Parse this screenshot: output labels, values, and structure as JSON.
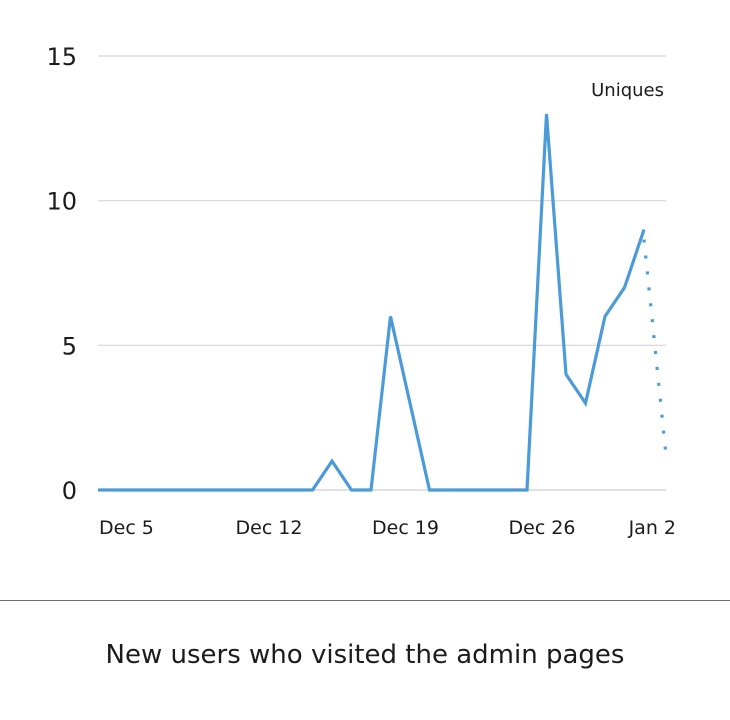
{
  "chart_data": {
    "type": "line",
    "caption": "New users who visited the admin pages",
    "legend": "Uniques",
    "legend_position": "top-right",
    "grid": true,
    "ylim": [
      0,
      15
    ],
    "yticks": [
      "15",
      "10",
      "5",
      "0"
    ],
    "xlim": [
      "2022-12-05",
      "2023-01-02"
    ],
    "xticks": [
      {
        "label": "Dec 5",
        "date": "2022-12-05"
      },
      {
        "label": "Dec 12",
        "date": "2022-12-12"
      },
      {
        "label": "Dec 19",
        "date": "2022-12-19"
      },
      {
        "label": "Dec 26",
        "date": "2022-12-26"
      },
      {
        "label": "Jan 2",
        "date": "2023-01-02"
      }
    ],
    "series": [
      {
        "name": "Uniques",
        "color": "#4a9bd8",
        "points": [
          {
            "x": "2022-12-05",
            "y": 0
          },
          {
            "x": "2022-12-06",
            "y": 0
          },
          {
            "x": "2022-12-07",
            "y": 0
          },
          {
            "x": "2022-12-08",
            "y": 0
          },
          {
            "x": "2022-12-09",
            "y": 0
          },
          {
            "x": "2022-12-10",
            "y": 0
          },
          {
            "x": "2022-12-11",
            "y": 0
          },
          {
            "x": "2022-12-12",
            "y": 0
          },
          {
            "x": "2022-12-13",
            "y": 0
          },
          {
            "x": "2022-12-14",
            "y": 0
          },
          {
            "x": "2022-12-15",
            "y": 0
          },
          {
            "x": "2022-12-16",
            "y": 0
          },
          {
            "x": "2022-12-17",
            "y": 1
          },
          {
            "x": "2022-12-18",
            "y": 0
          },
          {
            "x": "2022-12-19",
            "y": 0
          },
          {
            "x": "2022-12-20",
            "y": 6
          },
          {
            "x": "2022-12-21",
            "y": 3
          },
          {
            "x": "2022-12-22",
            "y": 0
          },
          {
            "x": "2022-12-23",
            "y": 0
          },
          {
            "x": "2022-12-24",
            "y": 0
          },
          {
            "x": "2022-12-25",
            "y": 0
          },
          {
            "x": "2022-12-26",
            "y": 0
          },
          {
            "x": "2022-12-27",
            "y": 0
          },
          {
            "x": "2022-12-28",
            "y": 13
          },
          {
            "x": "2022-12-29",
            "y": 4
          },
          {
            "x": "2022-12-30",
            "y": 3
          },
          {
            "x": "2022-12-31",
            "y": 6
          },
          {
            "x": "2023-01-01",
            "y": 7
          },
          {
            "x": "2023-01-02",
            "y": 9
          }
        ],
        "projection": [
          {
            "x": "2023-01-02",
            "y": 9
          },
          {
            "x": "2023-01-03",
            "y": 1.2
          }
        ]
      }
    ]
  }
}
